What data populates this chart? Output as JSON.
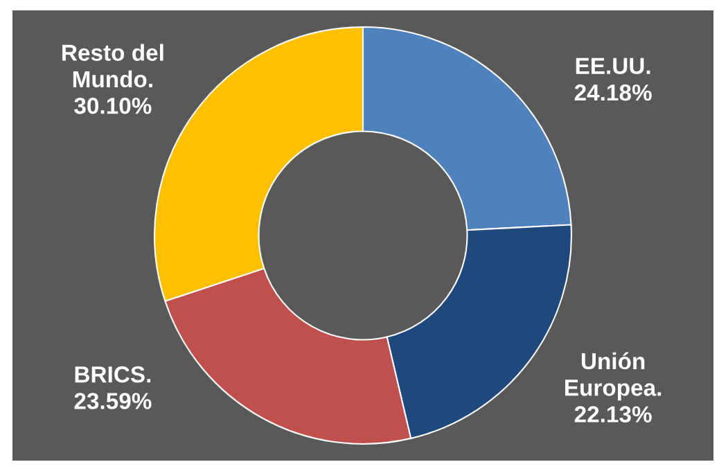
{
  "chart_data": {
    "type": "donut",
    "categories": [
      "EE.UU.",
      "Unión\nEuropea.",
      "BRICS.",
      "Resto del\nMundo."
    ],
    "values": [
      24.18,
      22.13,
      23.59,
      30.1
    ],
    "value_labels": [
      "24.18%",
      "22.13%",
      "23.59%",
      "30.10%"
    ],
    "colors": [
      "#4f81bd",
      "#1f497d",
      "#c0504d",
      "#ffc000"
    ],
    "legend": false
  }
}
